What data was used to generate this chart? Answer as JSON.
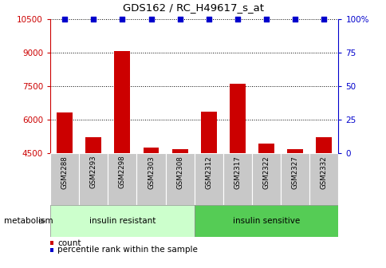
{
  "title": "GDS162 / RC_H49617_s_at",
  "samples": [
    "GSM2288",
    "GSM2293",
    "GSM2298",
    "GSM2303",
    "GSM2308",
    "GSM2312",
    "GSM2317",
    "GSM2322",
    "GSM2327",
    "GSM2332"
  ],
  "counts": [
    6300,
    5200,
    9050,
    4750,
    4650,
    6350,
    7600,
    4900,
    4650,
    5200
  ],
  "percentiles": [
    100,
    100,
    100,
    100,
    100,
    100,
    100,
    100,
    100,
    100
  ],
  "ylim_left": [
    4500,
    10500
  ],
  "ylim_right": [
    0,
    100
  ],
  "yticks_left": [
    4500,
    6000,
    7500,
    9000,
    10500
  ],
  "yticks_right": [
    0,
    25,
    50,
    75,
    100
  ],
  "bar_color": "#cc0000",
  "scatter_color": "#0000cc",
  "grid_color": "#000000",
  "tick_area_color": "#c8c8c8",
  "group1_color": "#ccffcc",
  "group2_color": "#55cc55",
  "group1_label": "insulin resistant",
  "group2_label": "insulin sensitive",
  "group1_indices": [
    0,
    1,
    2,
    3,
    4
  ],
  "group2_indices": [
    5,
    6,
    7,
    8,
    9
  ],
  "metabolism_label": "metabolism",
  "legend_count_label": "count",
  "legend_percentile_label": "percentile rank within the sample"
}
